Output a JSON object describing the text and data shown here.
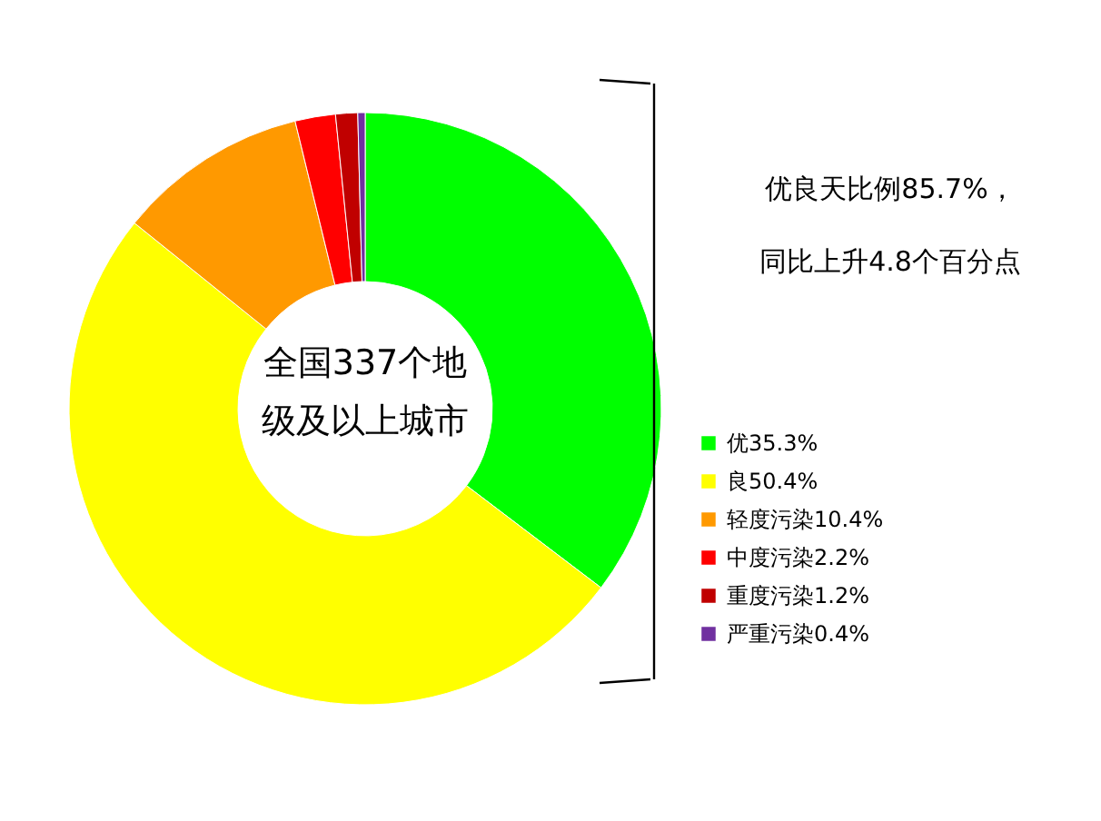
{
  "chart_data": {
    "type": "donut",
    "categories": [
      "优35.3%",
      "良50.4%",
      "轻度污染10.4%",
      "中度污染2.2%",
      "重度污染1.2%",
      "严重污染0.4%"
    ],
    "values": [
      35.3,
      50.4,
      10.4,
      2.2,
      1.2,
      0.4
    ],
    "colors": [
      "#00ff00",
      "#ffff00",
      "#ff9900",
      "#ff0000",
      "#c00000",
      "#7030a0"
    ],
    "legend": "right",
    "annotations": [
      "全国337个地",
      "级及以上城市",
      "优良天比例85.7%，",
      "同比上升4.8个百分点"
    ]
  }
}
